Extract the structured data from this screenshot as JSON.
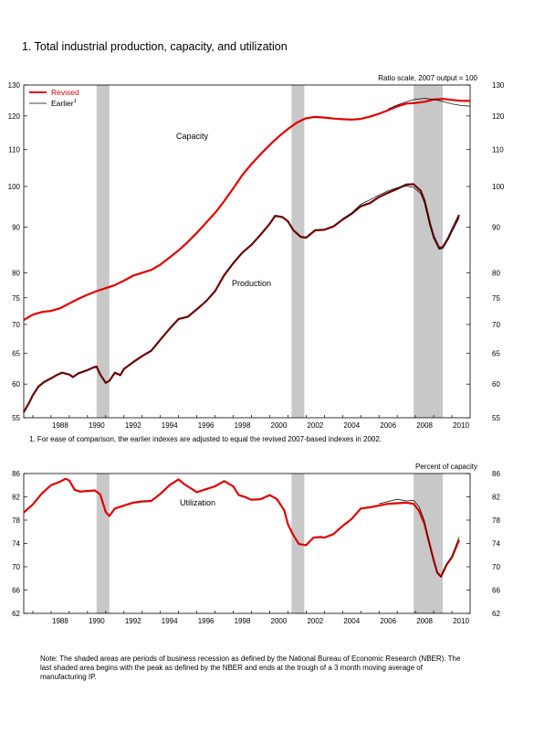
{
  "title": "1. Total industrial production, capacity, and utilization",
  "footnote": "1. For ease of comparison, the earlier indexes are adjusted to equal the revised 2007-based indexes in 2002.",
  "note": "Note: The shaded areas are periods of business recession as defined by the National Bureau of Economic Research (NBER).  The last shaded area begins with the peak as defined by the NBER and ends at the trough of a 3 month moving average of manufacturing IP.",
  "colors": {
    "revised": "#e00000",
    "earlier": "#000000",
    "recession": "#c8c8c8",
    "production": "#6b0000"
  },
  "chart_data": [
    {
      "type": "line",
      "annotation": "Ratio scale, 2007 output = 100",
      "scale": "log",
      "xlim": [
        1986.5,
        2011
      ],
      "ylim": [
        55,
        130
      ],
      "x_ticks": [
        "1988",
        "1990",
        "1992",
        "1994",
        "1996",
        "1998",
        "2000",
        "2002",
        "2004",
        "2006",
        "2008",
        "2010"
      ],
      "y_ticks": [
        55,
        60,
        65,
        70,
        75,
        80,
        90,
        100,
        110,
        120,
        130
      ],
      "legend": {
        "placement": "top-left",
        "entries": [
          "Revised",
          "Earlier"
        ],
        "earlier_superscript": "1"
      },
      "recessions": [
        [
          1990.5,
          1991.2
        ],
        [
          2001.2,
          2001.9
        ],
        [
          2007.9,
          2009.5
        ]
      ],
      "series_labels": {
        "capacity": "Capacity",
        "production": "Production"
      },
      "series": [
        {
          "name": "Capacity",
          "kind": "capacity",
          "revised": [
            [
              1986.5,
              70.8
            ],
            [
              1987,
              71.8
            ],
            [
              1987.5,
              72.3
            ],
            [
              1988,
              72.5
            ],
            [
              1988.5,
              73
            ],
            [
              1989,
              73.9
            ],
            [
              1989.5,
              74.8
            ],
            [
              1990,
              75.6
            ],
            [
              1990.5,
              76.3
            ],
            [
              1991,
              76.9
            ],
            [
              1991.5,
              77.5
            ],
            [
              1992,
              78.4
            ],
            [
              1992.5,
              79.4
            ],
            [
              1993,
              80
            ],
            [
              1993.5,
              80.6
            ],
            [
              1994,
              81.7
            ],
            [
              1994.5,
              83.2
            ],
            [
              1995,
              84.8
            ],
            [
              1995.5,
              86.6
            ],
            [
              1996,
              88.7
            ],
            [
              1996.5,
              91
            ],
            [
              1997,
              93.4
            ],
            [
              1997.5,
              96.3
            ],
            [
              1998,
              99.5
            ],
            [
              1998.5,
              103
            ],
            [
              1999,
              106
            ],
            [
              1999.5,
              108.7
            ],
            [
              2000,
              111.3
            ],
            [
              2000.5,
              113.8
            ],
            [
              2001,
              116
            ],
            [
              2001.5,
              118
            ],
            [
              2002,
              119.3
            ],
            [
              2002.5,
              119.7
            ],
            [
              2003,
              119.5
            ],
            [
              2003.5,
              119.2
            ],
            [
              2004,
              119
            ],
            [
              2004.5,
              118.9
            ],
            [
              2005,
              119.1
            ],
            [
              2005.5,
              119.8
            ],
            [
              2006,
              120.7
            ],
            [
              2006.5,
              121.8
            ],
            [
              2007,
              123
            ],
            [
              2007.5,
              123.9
            ],
            [
              2008,
              124.1
            ],
            [
              2008.5,
              124.5
            ],
            [
              2009,
              125.2
            ],
            [
              2009.5,
              125.4
            ],
            [
              2010,
              125.1
            ],
            [
              2010.5,
              124.8
            ],
            [
              2011,
              124.8
            ]
          ],
          "earlier": [
            [
              2006.5,
              122.2
            ],
            [
              2007,
              123.4
            ],
            [
              2007.5,
              124.5
            ],
            [
              2008,
              125.3
            ],
            [
              2008.5,
              125.6
            ],
            [
              2009,
              125.3
            ],
            [
              2009.5,
              124.6
            ],
            [
              2010,
              123.8
            ],
            [
              2010.5,
              123.3
            ],
            [
              2011,
              123.1
            ]
          ]
        },
        {
          "name": "Production",
          "kind": "production",
          "revised": [
            [
              1986.5,
              55.8
            ],
            [
              1986.8,
              57.2
            ],
            [
              1987,
              58.3
            ],
            [
              1987.3,
              59.6
            ],
            [
              1987.6,
              60.3
            ],
            [
              1988,
              60.9
            ],
            [
              1988.3,
              61.4
            ],
            [
              1988.6,
              61.8
            ],
            [
              1989,
              61.5
            ],
            [
              1989.2,
              61.1
            ],
            [
              1989.5,
              61.7
            ],
            [
              1989.8,
              62
            ],
            [
              1990,
              62.2
            ],
            [
              1990.3,
              62.6
            ],
            [
              1990.5,
              62.8
            ],
            [
              1990.7,
              61.5
            ],
            [
              1991,
              60.2
            ],
            [
              1991.2,
              60.5
            ],
            [
              1991.5,
              61.8
            ],
            [
              1991.8,
              61.4
            ],
            [
              1992,
              62.4
            ],
            [
              1992.5,
              63.5
            ],
            [
              1993,
              64.5
            ],
            [
              1993.5,
              65.4
            ],
            [
              1994,
              67.3
            ],
            [
              1994.5,
              69.2
            ],
            [
              1995,
              71
            ],
            [
              1995.5,
              71.4
            ],
            [
              1996,
              72.8
            ],
            [
              1996.5,
              74.3
            ],
            [
              1997,
              76.3
            ],
            [
              1997.5,
              79.5
            ],
            [
              1998,
              82
            ],
            [
              1998.5,
              84.3
            ],
            [
              1999,
              86
            ],
            [
              1999.5,
              88.3
            ],
            [
              2000,
              90.8
            ],
            [
              2000.3,
              92.7
            ],
            [
              2000.7,
              92.4
            ],
            [
              2001,
              91.4
            ],
            [
              2001.3,
              89.3
            ],
            [
              2001.7,
              87.8
            ],
            [
              2002,
              87.6
            ],
            [
              2002.5,
              89.3
            ],
            [
              2003,
              89.4
            ],
            [
              2003.5,
              90.2
            ],
            [
              2004,
              91.8
            ],
            [
              2004.5,
              93.2
            ],
            [
              2005,
              95
            ],
            [
              2005.5,
              95.8
            ],
            [
              2006,
              97.3
            ],
            [
              2006.5,
              98.4
            ],
            [
              2007,
              99.4
            ],
            [
              2007.5,
              100.5
            ],
            [
              2007.9,
              100.6
            ],
            [
              2008.3,
              98.8
            ],
            [
              2008.5,
              96.4
            ],
            [
              2008.8,
              90.8
            ],
            [
              2009,
              87.9
            ],
            [
              2009.3,
              85.3
            ],
            [
              2009.5,
              85.5
            ],
            [
              2009.8,
              87.5
            ],
            [
              2010,
              89.3
            ],
            [
              2010.4,
              92.9
            ]
          ],
          "earlier": [
            [
              2004,
              92
            ],
            [
              2004.5,
              93.4
            ],
            [
              2005,
              95.5
            ],
            [
              2005.5,
              96.6
            ],
            [
              2006,
              97.8
            ],
            [
              2006.5,
              98.9
            ],
            [
              2007,
              99.7
            ],
            [
              2007.5,
              100.1
            ],
            [
              2007.9,
              99.8
            ],
            [
              2008.3,
              98.1
            ],
            [
              2008.5,
              95.8
            ],
            [
              2008.8,
              90.3
            ],
            [
              2009,
              87.4
            ],
            [
              2009.3,
              85
            ],
            [
              2009.5,
              85.2
            ],
            [
              2009.8,
              87.2
            ],
            [
              2010,
              88.9
            ],
            [
              2010.4,
              92.2
            ]
          ]
        }
      ]
    },
    {
      "type": "line",
      "annotation": "Percent of capacity",
      "xlim": [
        1986.5,
        2011
      ],
      "ylim": [
        62,
        86
      ],
      "x_ticks": [
        "1988",
        "1990",
        "1992",
        "1994",
        "1996",
        "1998",
        "2000",
        "2002",
        "2004",
        "2006",
        "2008",
        "2010"
      ],
      "y_ticks": [
        62,
        66,
        70,
        74,
        78,
        82,
        86
      ],
      "recessions": [
        [
          1990.5,
          1991.2
        ],
        [
          2001.2,
          2001.9
        ],
        [
          2007.9,
          2009.5
        ]
      ],
      "series_labels": {
        "utilization": "Utilization"
      },
      "series": [
        {
          "name": "Utilization",
          "kind": "utilization",
          "revised": [
            [
              1986.5,
              79.3
            ],
            [
              1987,
              80.7
            ],
            [
              1987.5,
              82.6
            ],
            [
              1988,
              84
            ],
            [
              1988.5,
              84.6
            ],
            [
              1988.8,
              85.1
            ],
            [
              1989,
              84.8
            ],
            [
              1989.3,
              83.2
            ],
            [
              1989.6,
              82.9
            ],
            [
              1990,
              83
            ],
            [
              1990.4,
              83.1
            ],
            [
              1990.7,
              82.4
            ],
            [
              1991,
              79.4
            ],
            [
              1991.2,
              78.7
            ],
            [
              1991.5,
              80
            ],
            [
              1992,
              80.5
            ],
            [
              1992.5,
              81
            ],
            [
              1993,
              81.2
            ],
            [
              1993.5,
              81.3
            ],
            [
              1994,
              82.5
            ],
            [
              1994.5,
              84
            ],
            [
              1995,
              85
            ],
            [
              1995.3,
              84.2
            ],
            [
              1995.7,
              83.4
            ],
            [
              1996,
              82.8
            ],
            [
              1996.5,
              83.3
            ],
            [
              1997,
              83.8
            ],
            [
              1997.5,
              84.7
            ],
            [
              1998,
              83.8
            ],
            [
              1998.3,
              82.3
            ],
            [
              1998.7,
              81.9
            ],
            [
              1999,
              81.5
            ],
            [
              1999.5,
              81.6
            ],
            [
              2000,
              82.3
            ],
            [
              2000.4,
              81.6
            ],
            [
              2000.8,
              79.7
            ],
            [
              2001,
              77.3
            ],
            [
              2001.3,
              75.4
            ],
            [
              2001.6,
              73.9
            ],
            [
              2002,
              73.7
            ],
            [
              2002.4,
              75
            ],
            [
              2002.8,
              75.1
            ],
            [
              2003,
              75
            ],
            [
              2003.5,
              75.6
            ],
            [
              2004,
              77
            ],
            [
              2004.5,
              78.2
            ],
            [
              2005,
              80
            ],
            [
              2005.5,
              80.2
            ],
            [
              2006,
              80.5
            ],
            [
              2006.5,
              80.8
            ],
            [
              2007,
              80.9
            ],
            [
              2007.5,
              81
            ],
            [
              2007.9,
              80.8
            ],
            [
              2008.2,
              79.6
            ],
            [
              2008.5,
              77.3
            ],
            [
              2008.7,
              74.8
            ],
            [
              2009,
              71.2
            ],
            [
              2009.2,
              69
            ],
            [
              2009.4,
              68.3
            ],
            [
              2009.7,
              70.3
            ],
            [
              2010,
              71.6
            ],
            [
              2010.4,
              74.6
            ]
          ],
          "earlier": [
            [
              2006,
              80.8
            ],
            [
              2006.5,
              81.2
            ],
            [
              2007,
              81.6
            ],
            [
              2007.5,
              81.3
            ],
            [
              2007.9,
              81.4
            ],
            [
              2008.2,
              80.3
            ],
            [
              2008.5,
              77.8
            ],
            [
              2008.7,
              74.8
            ],
            [
              2009,
              70.8
            ],
            [
              2009.2,
              68.8
            ],
            [
              2009.4,
              68.3
            ],
            [
              2009.7,
              70.4
            ],
            [
              2010,
              71.8
            ],
            [
              2010.4,
              75.1
            ]
          ]
        }
      ]
    }
  ]
}
